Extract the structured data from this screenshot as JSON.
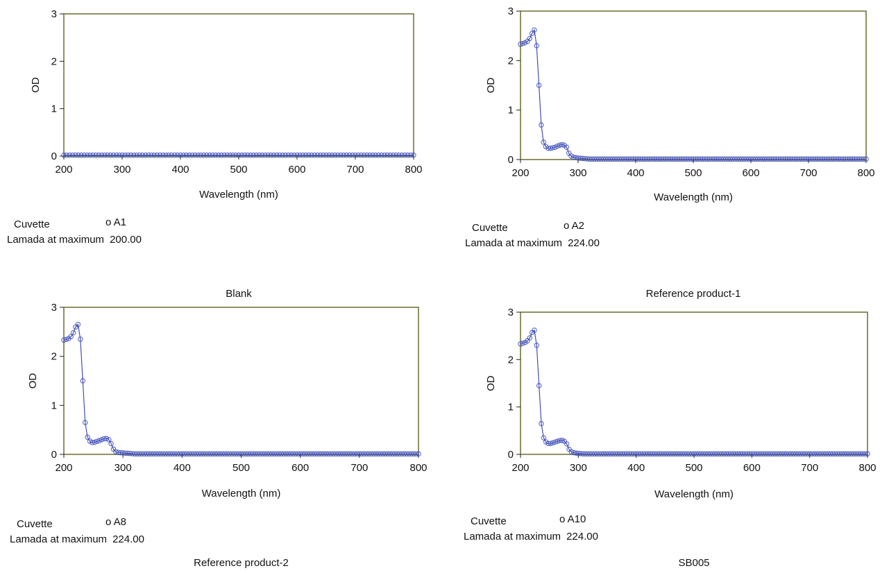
{
  "colors": {
    "series": "#3f4fb8",
    "frame": "#6b6b2e",
    "axis": "#222222"
  },
  "chart_data": [
    {
      "type": "line",
      "caption": "Blank",
      "xlabel": "Wavelength (nm)",
      "ylabel": "OD",
      "xlim": [
        200,
        800
      ],
      "ylim": [
        0,
        3
      ],
      "xticks": [
        200,
        300,
        400,
        500,
        600,
        700,
        800
      ],
      "yticks": [
        0,
        1,
        2,
        3
      ],
      "info": {
        "cuvette_label": "Cuvette",
        "cuvette_value": "o  A1",
        "lambda_label": "Lamada at maximum",
        "lambda_value": "200.00"
      },
      "series": [
        {
          "x": [
            200,
            800
          ],
          "y": [
            0.02,
            0.02
          ],
          "marker_step": 5
        }
      ]
    },
    {
      "type": "line",
      "caption": "Reference product-1",
      "xlabel": "Wavelength (nm)",
      "ylabel": "OD",
      "xlim": [
        200,
        800
      ],
      "ylim": [
        0,
        3
      ],
      "xticks": [
        200,
        300,
        400,
        500,
        600,
        700,
        800
      ],
      "yticks": [
        0,
        1,
        2,
        3
      ],
      "info": {
        "cuvette_label": "Cuvette",
        "cuvette_value": "o  A2",
        "lambda_label": "Lamada at maximum",
        "lambda_value": "224.00"
      },
      "series": [
        {
          "x": [
            200,
            205,
            210,
            215,
            220,
            224,
            228,
            232,
            236,
            240,
            245,
            250,
            260,
            270,
            275,
            280,
            285,
            290,
            300,
            310,
            320,
            330,
            350,
            800
          ],
          "y": [
            2.33,
            2.35,
            2.37,
            2.42,
            2.55,
            2.62,
            2.3,
            1.5,
            0.7,
            0.35,
            0.24,
            0.22,
            0.25,
            0.3,
            0.3,
            0.25,
            0.1,
            0.05,
            0.03,
            0.02,
            0.01,
            0.01,
            0.01,
            0.01
          ],
          "marker_step": 4
        }
      ]
    },
    {
      "type": "line",
      "caption": "Reference product-2",
      "xlabel": "Wavelength (nm)",
      "ylabel": "OD",
      "xlim": [
        200,
        800
      ],
      "ylim": [
        0,
        3
      ],
      "xticks": [
        200,
        300,
        400,
        500,
        600,
        700,
        800
      ],
      "yticks": [
        0,
        1,
        2,
        3
      ],
      "info": {
        "cuvette_label": "Cuvette",
        "cuvette_value": "o  A8",
        "lambda_label": "Lamada at maximum",
        "lambda_value": "224.00"
      },
      "series": [
        {
          "x": [
            200,
            205,
            210,
            215,
            220,
            224,
            228,
            232,
            236,
            240,
            245,
            250,
            260,
            270,
            275,
            280,
            285,
            290,
            300,
            310,
            320,
            330,
            350,
            800
          ],
          "y": [
            2.33,
            2.35,
            2.37,
            2.45,
            2.6,
            2.65,
            2.35,
            1.5,
            0.65,
            0.35,
            0.25,
            0.24,
            0.28,
            0.33,
            0.32,
            0.22,
            0.08,
            0.04,
            0.03,
            0.02,
            0.01,
            0.01,
            0.01,
            0.01
          ],
          "marker_step": 4
        }
      ]
    },
    {
      "type": "line",
      "caption": "SB005",
      "xlabel": "Wavelength (nm)",
      "ylabel": "OD",
      "xlim": [
        200,
        800
      ],
      "ylim": [
        0,
        3
      ],
      "xticks": [
        200,
        300,
        400,
        500,
        600,
        700,
        800
      ],
      "yticks": [
        0,
        1,
        2,
        3
      ],
      "info": {
        "cuvette_label": "Cuvette",
        "cuvette_value": "o  A10",
        "lambda_label": "Lamada at maximum",
        "lambda_value": "224.00"
      },
      "series": [
        {
          "x": [
            200,
            205,
            210,
            215,
            220,
            224,
            228,
            232,
            236,
            240,
            245,
            250,
            260,
            270,
            275,
            280,
            285,
            290,
            300,
            310,
            320,
            330,
            350,
            800
          ],
          "y": [
            2.33,
            2.35,
            2.37,
            2.43,
            2.57,
            2.62,
            2.3,
            1.45,
            0.65,
            0.35,
            0.24,
            0.22,
            0.26,
            0.3,
            0.29,
            0.22,
            0.08,
            0.04,
            0.02,
            0.01,
            0.01,
            0.01,
            0.01,
            0.01
          ],
          "marker_step": 4
        }
      ]
    }
  ]
}
